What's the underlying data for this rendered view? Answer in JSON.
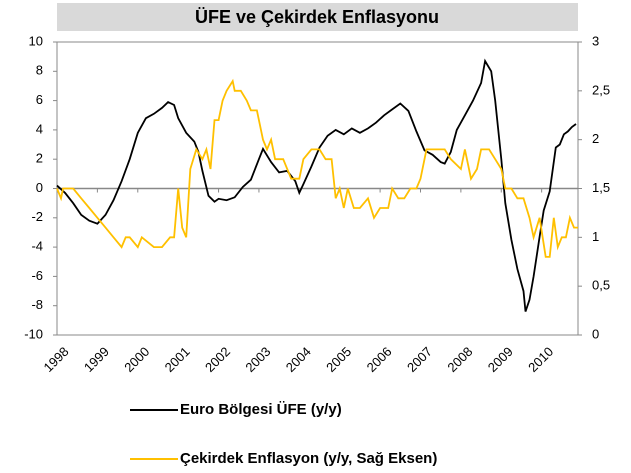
{
  "chart_data": {
    "type": "line",
    "title": "ÜFE ve Çekirdek Enflasyonu",
    "xlim": [
      1998,
      2010.9
    ],
    "xticks": [
      1998,
      1999,
      2000,
      2001,
      2002,
      2003,
      2004,
      2005,
      2006,
      2007,
      2008,
      2009,
      2010
    ],
    "ylim": [
      -10,
      10
    ],
    "yticks": [
      -10,
      -8,
      -6,
      -4,
      -2,
      0,
      2,
      4,
      6,
      8,
      10
    ],
    "y2lim": [
      0,
      3
    ],
    "y2ticks": [
      0,
      {
        "value": 0.5,
        "label": "0,5"
      },
      1,
      {
        "value": 1.5,
        "label": "1,5"
      },
      2,
      {
        "value": 2.5,
        "label": "2,5"
      },
      3
    ],
    "grid": false,
    "legend": "bottom",
    "series": [
      {
        "name": "Euro Bölgesi ÜFE (y/y)",
        "color": "#000000",
        "x": [
          1998.0,
          1998.2,
          1998.4,
          1998.6,
          1998.8,
          1999.0,
          1999.2,
          1999.4,
          1999.6,
          1999.8,
          2000.0,
          2000.2,
          2000.4,
          2000.6,
          2000.75,
          2000.9,
          2001.0,
          2001.2,
          2001.4,
          2001.5,
          2001.6,
          2001.75,
          2001.9,
          2002.0,
          2002.2,
          2002.4,
          2002.6,
          2002.8,
          2003.0,
          2003.1,
          2003.3,
          2003.5,
          2003.7,
          2003.9,
          2004.0,
          2004.1,
          2004.3,
          2004.5,
          2004.7,
          2004.9,
          2005.1,
          2005.3,
          2005.5,
          2005.7,
          2005.9,
          2006.1,
          2006.3,
          2006.5,
          2006.7,
          2006.9,
          2007.1,
          2007.3,
          2007.5,
          2007.6,
          2007.75,
          2007.9,
          2008.1,
          2008.3,
          2008.5,
          2008.6,
          2008.75,
          2008.85,
          2009.0,
          2009.1,
          2009.25,
          2009.4,
          2009.55,
          2009.6,
          2009.7,
          2009.8,
          2009.95,
          2010.05,
          2010.2,
          2010.35,
          2010.45,
          2010.55,
          2010.65,
          2010.75,
          2010.85
        ],
        "values": [
          0.2,
          -0.3,
          -1.0,
          -1.8,
          -2.2,
          -2.4,
          -1.8,
          -0.8,
          0.5,
          2.0,
          3.8,
          4.8,
          5.1,
          5.5,
          5.9,
          5.7,
          4.8,
          3.8,
          3.2,
          2.5,
          1.2,
          -0.5,
          -0.9,
          -0.7,
          -0.8,
          -0.6,
          0.1,
          0.6,
          2.0,
          2.7,
          1.8,
          1.1,
          1.2,
          0.5,
          -0.3,
          0.3,
          1.5,
          2.8,
          3.6,
          4.0,
          3.7,
          4.1,
          3.8,
          4.1,
          4.5,
          5.0,
          5.4,
          5.8,
          5.3,
          3.9,
          2.6,
          2.3,
          1.8,
          1.7,
          2.5,
          4.0,
          5.0,
          6.0,
          7.2,
          8.7,
          8.0,
          6.0,
          2.0,
          -1.0,
          -3.5,
          -5.5,
          -7.0,
          -8.4,
          -7.6,
          -6.0,
          -3.3,
          -1.5,
          -0.2,
          2.8,
          3.0,
          3.7,
          3.9,
          4.2,
          4.4
        ]
      },
      {
        "name": "Çekirdek Enflasyon (y/y, Sağ Eksen)",
        "color": "#ffc000",
        "axis": "y2",
        "x": [
          1998.0,
          1998.1,
          1998.15,
          1998.4,
          1998.6,
          1998.8,
          1999.0,
          1999.2,
          1999.4,
          1999.6,
          1999.7,
          1999.8,
          2000.0,
          2000.1,
          2000.4,
          2000.6,
          2000.8,
          2000.9,
          2001.0,
          2001.1,
          2001.2,
          2001.3,
          2001.45,
          2001.6,
          2001.7,
          2001.8,
          2001.9,
          2002.0,
          2002.1,
          2002.2,
          2002.35,
          2002.4,
          2002.55,
          2002.7,
          2002.8,
          2002.95,
          2003.1,
          2003.2,
          2003.3,
          2003.4,
          2003.6,
          2003.8,
          2004.0,
          2004.1,
          2004.3,
          2004.5,
          2004.65,
          2004.8,
          2004.9,
          2005.0,
          2005.1,
          2005.2,
          2005.35,
          2005.5,
          2005.7,
          2005.85,
          2006.0,
          2006.2,
          2006.3,
          2006.45,
          2006.6,
          2006.75,
          2006.9,
          2007.0,
          2007.15,
          2007.3,
          2007.6,
          2007.75,
          2008.0,
          2008.1,
          2008.25,
          2008.4,
          2008.5,
          2008.7,
          2008.85,
          2009.0,
          2009.1,
          2009.25,
          2009.4,
          2009.55,
          2009.7,
          2009.8,
          2009.95,
          2010.1,
          2010.2,
          2010.3,
          2010.4,
          2010.5,
          2010.6,
          2010.7,
          2010.8,
          2010.9
        ],
        "values": [
          1.5,
          1.4,
          1.5,
          1.5,
          1.4,
          1.3,
          1.2,
          1.1,
          1.0,
          0.9,
          1.0,
          1.0,
          0.9,
          1.0,
          0.9,
          0.9,
          1.0,
          1.0,
          1.5,
          1.1,
          1.0,
          1.7,
          1.9,
          1.8,
          1.9,
          1.7,
          2.2,
          2.2,
          2.4,
          2.5,
          2.6,
          2.5,
          2.5,
          2.4,
          2.3,
          2.3,
          2.0,
          1.9,
          2.0,
          1.8,
          1.8,
          1.6,
          1.6,
          1.8,
          1.9,
          1.9,
          1.8,
          1.8,
          1.4,
          1.5,
          1.3,
          1.5,
          1.3,
          1.3,
          1.4,
          1.2,
          1.3,
          1.3,
          1.5,
          1.4,
          1.4,
          1.5,
          1.5,
          1.6,
          1.9,
          1.9,
          1.9,
          1.8,
          1.7,
          1.9,
          1.6,
          1.7,
          1.9,
          1.9,
          1.8,
          1.7,
          1.5,
          1.5,
          1.4,
          1.4,
          1.2,
          1.0,
          1.2,
          0.8,
          0.8,
          1.2,
          0.9,
          1.0,
          1.0,
          1.2,
          1.1,
          1.1
        ]
      }
    ]
  }
}
